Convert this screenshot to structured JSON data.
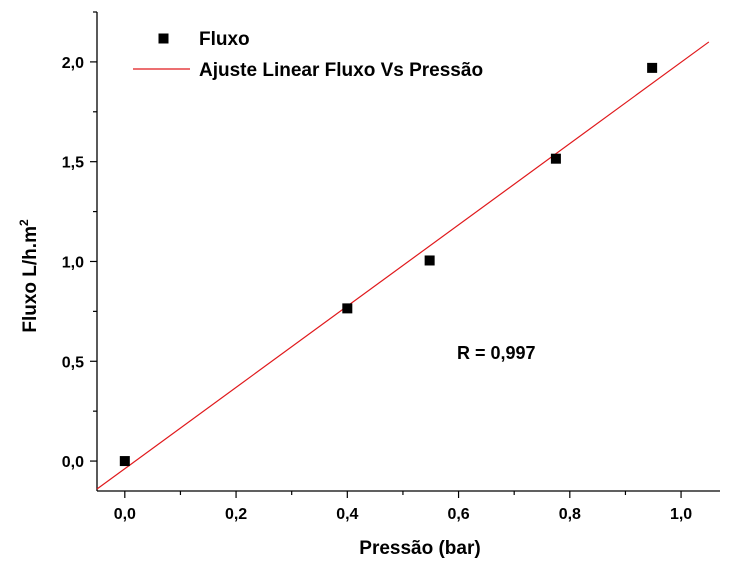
{
  "chart_data": {
    "type": "scatter",
    "title": "",
    "xlabel": "Pressão (bar)",
    "ylabel_main": "Fluxo L/h.m",
    "ylabel_superscript": "2",
    "xlim": [
      -0.05,
      1.07
    ],
    "ylim": [
      -0.15,
      2.25
    ],
    "x_ticks": [
      0.0,
      0.2,
      0.4,
      0.6,
      0.8,
      1.0
    ],
    "x_tick_labels": [
      "0,0",
      "0,2",
      "0,4",
      "0,6",
      "0,8",
      "1,0"
    ],
    "y_ticks": [
      0.0,
      0.5,
      1.0,
      1.5,
      2.0
    ],
    "y_tick_labels": [
      "0,0",
      "0,5",
      "1,0",
      "1,5",
      "2,0"
    ],
    "grid": false,
    "legend_position": "top-left",
    "series": [
      {
        "name": "Fluxo",
        "kind": "scatter",
        "marker": "square",
        "color": "#000000",
        "points": [
          {
            "x": 0.0,
            "y": 0.0
          },
          {
            "x": 0.4,
            "y": 0.765
          },
          {
            "x": 0.548,
            "y": 1.005
          },
          {
            "x": 0.775,
            "y": 1.515
          },
          {
            "x": 0.948,
            "y": 1.97
          }
        ]
      },
      {
        "name": "Ajuste Linear Fluxo Vs Pressão",
        "kind": "line",
        "color": "#e0191c",
        "x": [
          -0.05,
          1.05
        ],
        "y": [
          -0.14,
          2.1
        ]
      }
    ],
    "annotations": [
      {
        "text": "R = 0,997",
        "x": 0.68,
        "y": 0.53
      }
    ]
  }
}
